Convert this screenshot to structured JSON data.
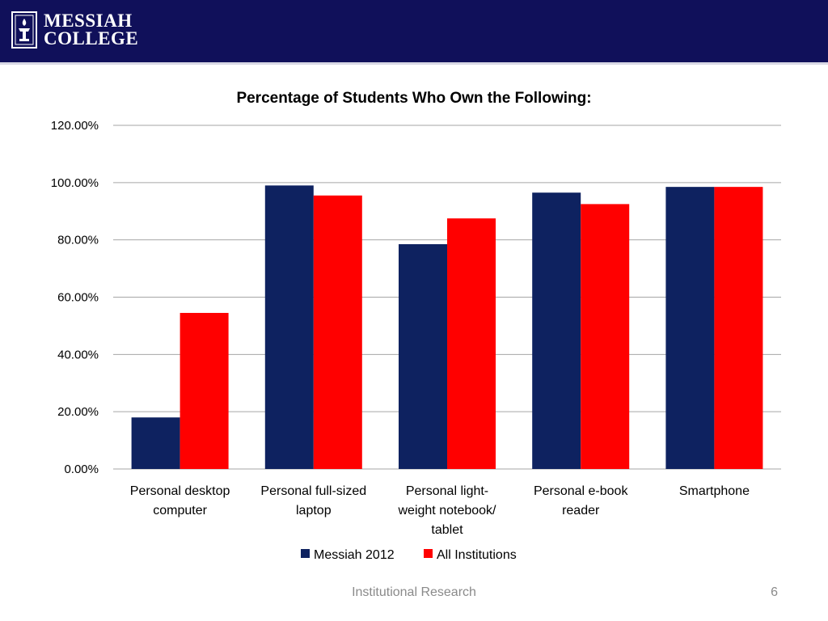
{
  "header": {
    "logo_line1": "MESSIAH",
    "logo_line2": "COLLEGE",
    "colors": {
      "bar": "#10105a"
    }
  },
  "footer": {
    "text": "Institutional Research",
    "page": "6"
  },
  "chart_data": {
    "type": "bar",
    "title": "Percentage of Students Who Own the Following:",
    "categories": [
      [
        "Personal desktop",
        "computer"
      ],
      [
        "Personal full-sized",
        "laptop"
      ],
      [
        "Personal light-",
        "weight notebook/",
        "tablet"
      ],
      [
        "Personal e-book",
        "reader"
      ],
      [
        "Smartphone"
      ]
    ],
    "series": [
      {
        "name": "Messiah 2012",
        "color": "#0e2260",
        "values": [
          18,
          99,
          78.5,
          96.5,
          98.5
        ]
      },
      {
        "name": "All Institutions",
        "color": "#ff0000",
        "values": [
          54.5,
          95.5,
          87.5,
          92.5,
          98.5
        ]
      }
    ],
    "yticks": [
      "0.00%",
      "20.00%",
      "40.00%",
      "60.00%",
      "80.00%",
      "100.00%",
      "120.00%"
    ],
    "ylim": [
      0,
      120
    ],
    "grid": true,
    "legend": "bottom"
  }
}
